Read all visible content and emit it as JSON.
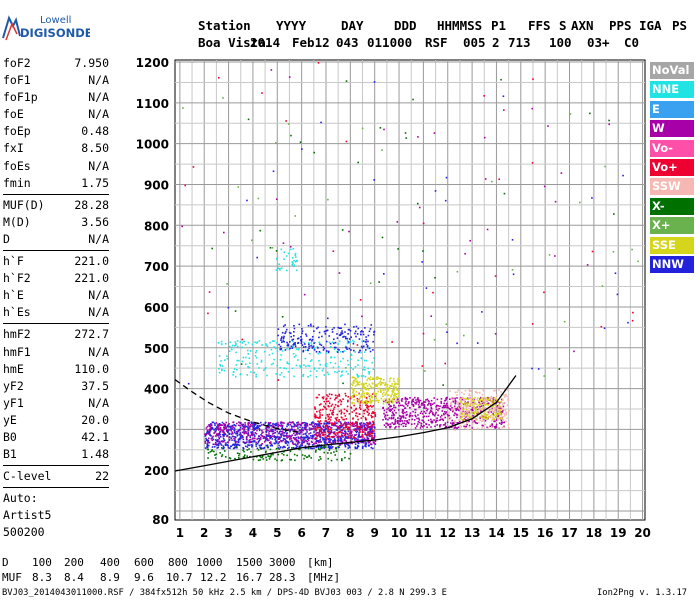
{
  "logo": {
    "line1": "Lowell",
    "line2": "DIGISONDE"
  },
  "header": {
    "labels": [
      "Station",
      "YYYY",
      "DAY",
      "DDD",
      "HHMMSS",
      "P1",
      "FFS",
      "S",
      "AXN",
      "PPS",
      "IGA",
      "PS"
    ],
    "values": [
      "Boa Vista",
      "2014",
      "Feb12",
      "043",
      "011000",
      "RSF",
      "005",
      "2",
      "713",
      "100",
      "03+",
      "C0"
    ]
  },
  "params": {
    "group1": [
      {
        "name": "foF2",
        "value": "7.950"
      },
      {
        "name": "foF1",
        "value": "N/A"
      },
      {
        "name": "foF1p",
        "value": "N/A"
      },
      {
        "name": "foE",
        "value": "N/A"
      },
      {
        "name": "foEp",
        "value": "0.48"
      },
      {
        "name": "fxI",
        "value": "8.50"
      },
      {
        "name": "foEs",
        "value": "N/A"
      },
      {
        "name": "fmin",
        "value": "1.75"
      }
    ],
    "group2": [
      {
        "name": "MUF(D)",
        "value": "28.28"
      },
      {
        "name": "M(D)",
        "value": "3.56"
      },
      {
        "name": "D",
        "value": "N/A"
      }
    ],
    "group3": [
      {
        "name": "h`F",
        "value": "221.0"
      },
      {
        "name": "h`F2",
        "value": "221.0"
      },
      {
        "name": "h`E",
        "value": "N/A"
      },
      {
        "name": "h`Es",
        "value": "N/A"
      }
    ],
    "group4": [
      {
        "name": "hmF2",
        "value": "272.7"
      },
      {
        "name": "hmF1",
        "value": "N/A"
      },
      {
        "name": "hmE",
        "value": "110.0"
      },
      {
        "name": "yF2",
        "value": "37.5"
      },
      {
        "name": "yF1",
        "value": "N/A"
      },
      {
        "name": "yE",
        "value": "20.0"
      },
      {
        "name": "B0",
        "value": "42.1"
      },
      {
        "name": "B1",
        "value": "1.48"
      }
    ],
    "group5": [
      {
        "name": "C-level",
        "value": "22"
      }
    ],
    "footer": [
      "Auto:",
      "Artist5",
      "500200"
    ]
  },
  "legend": [
    {
      "label": "NoVal",
      "color": "#a6a6a6"
    },
    {
      "label": "NNE",
      "color": "#22e3e3"
    },
    {
      "label": "E",
      "color": "#3aa0f0"
    },
    {
      "label": "W",
      "color": "#a800a8"
    },
    {
      "label": "Vo-",
      "color": "#ff4fa8"
    },
    {
      "label": "Vo+",
      "color": "#ee0030"
    },
    {
      "label": "SSW",
      "color": "#f7b7b2"
    },
    {
      "label": "X-",
      "color": "#007000"
    },
    {
      "label": "X+",
      "color": "#6ab24e"
    },
    {
      "label": "SSE",
      "color": "#d5d51c"
    },
    {
      "label": "NNW",
      "color": "#2222dd"
    }
  ],
  "bottom": {
    "d_label": "D",
    "d_values": [
      "100",
      "200",
      "400",
      "600",
      "800",
      "1000",
      "1500",
      "3000"
    ],
    "d_unit": "[km]",
    "muf_label": "MUF",
    "muf_values": [
      "8.3",
      "8.4",
      "8.9",
      "9.6",
      "10.7",
      "12.2",
      "16.7",
      "28.3"
    ],
    "muf_unit": "[MHz]",
    "file_info": "BVJ03_2014043011000.RSF / 384fx512h 50 kHz 2.5 km / DPS-4D BVJ03 003 / 2.8 N 299.3 E",
    "version": "Ion2Png v. 1.3.17"
  },
  "chart_data": {
    "type": "scatter",
    "title": "",
    "xlabel": "",
    "ylabel": "",
    "xlim": [
      0.8,
      20.1
    ],
    "ylim": [
      78,
      1205
    ],
    "x_ticks": [
      1,
      2,
      3,
      4,
      5,
      6,
      7,
      8,
      9,
      10,
      11,
      12,
      13,
      14,
      15,
      16,
      17,
      18,
      19,
      20
    ],
    "y_ticks": [
      80,
      200,
      300,
      400,
      500,
      600,
      700,
      800,
      900,
      1000,
      1100,
      1200
    ],
    "grid": true,
    "legend_position": "right",
    "curves": [
      {
        "name": "profile",
        "color": "#000000",
        "dash": false,
        "x": [
          0.8,
          2,
          3,
          4,
          5,
          6,
          7,
          8,
          9,
          10,
          11,
          12,
          13,
          14,
          14.8
        ],
        "y": [
          198,
          211,
          222,
          233,
          244,
          255,
          262,
          268,
          274,
          282,
          292,
          304,
          326,
          366,
          432
        ]
      },
      {
        "name": "E-layer",
        "color": "#000000",
        "dash": true,
        "x": [
          0.8,
          1.5,
          2.2,
          3,
          4,
          5,
          6
        ],
        "y": [
          422,
          392,
          365,
          340,
          318,
          302,
          292
        ]
      }
    ],
    "clusters": [
      {
        "name": "F-trace blue",
        "color": "#2222dd",
        "x": [
          2,
          9
        ],
        "y": [
          255,
          320
        ],
        "n": 900
      },
      {
        "name": "F-trace purple",
        "color": "#a800a8",
        "x": [
          2,
          9
        ],
        "y": [
          265,
          320
        ],
        "n": 500
      },
      {
        "name": "F2 trace",
        "color": "#a800a8",
        "x": [
          9.3,
          14.3
        ],
        "y": [
          305,
          380
        ],
        "n": 600
      },
      {
        "name": "spread red",
        "color": "#ee0030",
        "x": [
          6.5,
          9
        ],
        "y": [
          280,
          390
        ],
        "n": 300
      },
      {
        "name": "yellow",
        "color": "#d5d51c",
        "x": [
          8,
          10
        ],
        "y": [
          365,
          430
        ],
        "n": 250
      },
      {
        "name": "yellow right",
        "color": "#d5d51c",
        "x": [
          12.5,
          14.2
        ],
        "y": [
          325,
          380
        ],
        "n": 200
      },
      {
        "name": "pink rising",
        "color": "#f7b7b2",
        "x": [
          12,
          14.5
        ],
        "y": [
          300,
          400
        ],
        "n": 200
      },
      {
        "name": "cyan",
        "color": "#22e3e3",
        "x": [
          2.5,
          9
        ],
        "y": [
          430,
          520
        ],
        "n": 250
      },
      {
        "name": "NNW upper",
        "color": "#2222dd",
        "x": [
          5,
          9
        ],
        "y": [
          490,
          560
        ],
        "n": 200
      },
      {
        "name": "green lower",
        "color": "#007000",
        "x": [
          2,
          8
        ],
        "y": [
          225,
          260
        ],
        "n": 120
      },
      {
        "name": "upper cyan",
        "color": "#22e3e3",
        "x": [
          4.8,
          5.8
        ],
        "y": [
          690,
          745
        ],
        "n": 30
      }
    ]
  }
}
